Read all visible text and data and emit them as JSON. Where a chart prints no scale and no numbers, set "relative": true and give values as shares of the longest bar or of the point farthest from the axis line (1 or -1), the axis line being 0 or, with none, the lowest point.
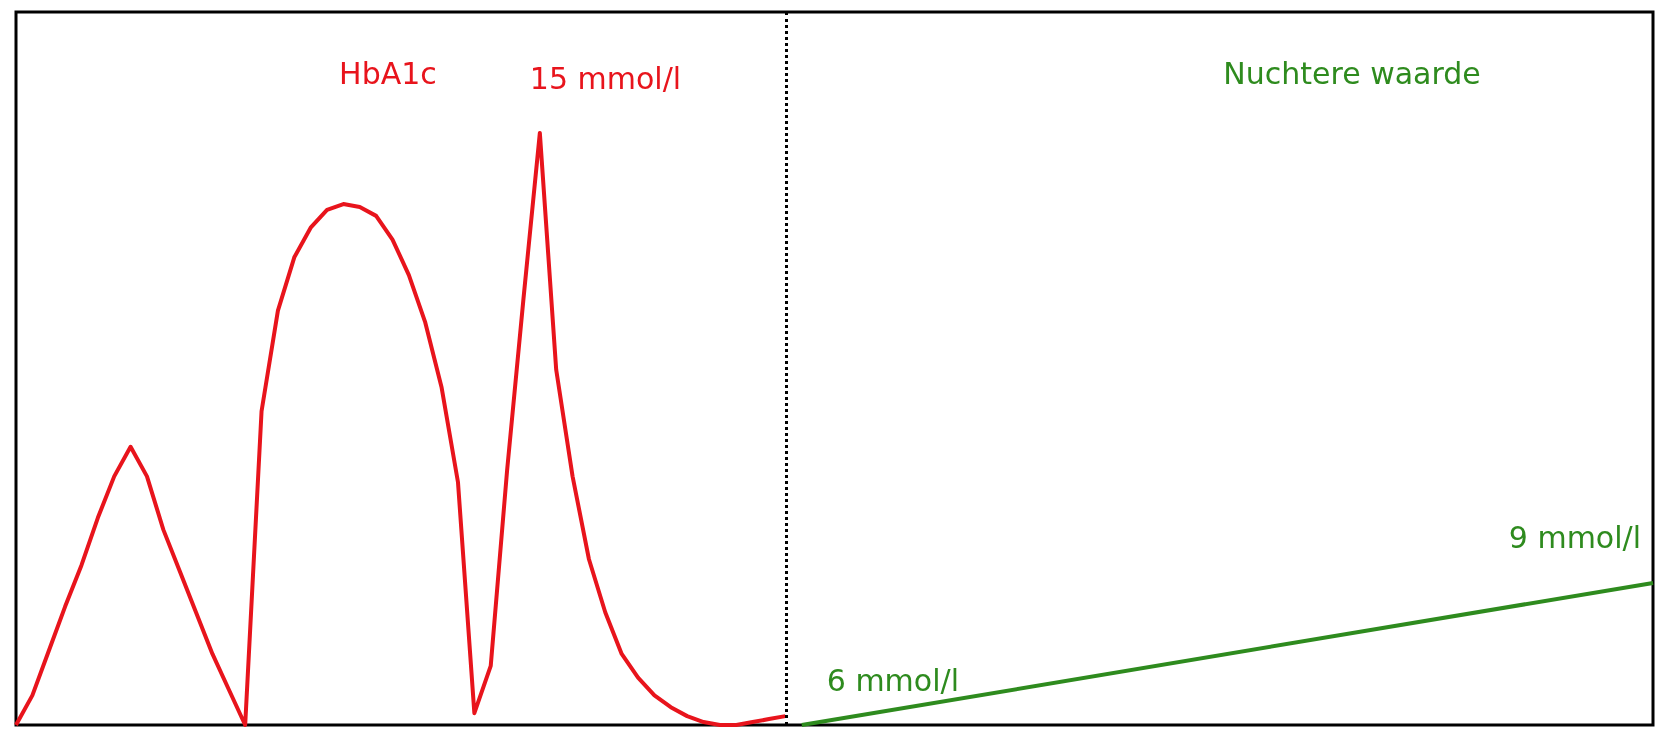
{
  "chart_data": {
    "type": "line",
    "relative": true,
    "categories": [
      null,
      null,
      null,
      null,
      null,
      null,
      null,
      null,
      null,
      null,
      null,
      null,
      null,
      null,
      null,
      null,
      null,
      null,
      null,
      null,
      null,
      null,
      null,
      null,
      null,
      null,
      null,
      null,
      null,
      null,
      null,
      null,
      null,
      null,
      null,
      null,
      null,
      null,
      null,
      null,
      null,
      null,
      null,
      null,
      null,
      null,
      null,
      null,
      null,
      null,
      null,
      null,
      null,
      null,
      null,
      null,
      null,
      null,
      null,
      null,
      null,
      null,
      null,
      null,
      null,
      null,
      null,
      null,
      null,
      null,
      null,
      null,
      null,
      null,
      null,
      null,
      null,
      null,
      null,
      null,
      null,
      null,
      null,
      null,
      null,
      null,
      null,
      null,
      null,
      null,
      null,
      null,
      null,
      null,
      null,
      null,
      null,
      null,
      null,
      null,
      null
    ],
    "series": [
      {
        "name": "HbA1c",
        "color": "#e8141c",
        "values": [
          0,
          0.05,
          0.125,
          0.2,
          0.27,
          0.35,
          0.42,
          0.47,
          0.42,
          0.33,
          0.26,
          0.19,
          0.12,
          0.06,
          0,
          0.53,
          0.7,
          0.79,
          0.84,
          0.87,
          0.88,
          0.875,
          0.86,
          0.82,
          0.76,
          0.68,
          0.57,
          0.41,
          0.02,
          0.1,
          0.43,
          0.72,
          1,
          0.6,
          0.42,
          0.28,
          0.19,
          0.12,
          0.08,
          0.05,
          0.03,
          0.015,
          0.005,
          0,
          0,
          0.005,
          0.01,
          0.015,
          null,
          null,
          null,
          null,
          null,
          null,
          null,
          null,
          null,
          null,
          null,
          null,
          null,
          null,
          null,
          null,
          null,
          null,
          null,
          null,
          null,
          null,
          null,
          null,
          null,
          null,
          null,
          null,
          null,
          null,
          null,
          null,
          null,
          null,
          null,
          null,
          null,
          null,
          null,
          null,
          null,
          null,
          null,
          null,
          null,
          null,
          null,
          null,
          null,
          null,
          null,
          null,
          null
        ]
      },
      {
        "name": "Nuchtere waarde",
        "color": "#2e8b1e",
        "values": [
          null,
          null,
          null,
          null,
          null,
          null,
          null,
          null,
          null,
          null,
          null,
          null,
          null,
          null,
          null,
          null,
          null,
          null,
          null,
          null,
          null,
          null,
          null,
          null,
          null,
          null,
          null,
          null,
          null,
          null,
          null,
          null,
          null,
          null,
          null,
          null,
          null,
          null,
          null,
          null,
          null,
          null,
          null,
          null,
          null,
          null,
          null,
          null,
          0,
          null,
          null,
          null,
          null,
          null,
          null,
          null,
          null,
          null,
          null,
          null,
          null,
          null,
          null,
          null,
          null,
          null,
          null,
          null,
          null,
          null,
          null,
          null,
          null,
          null,
          null,
          null,
          null,
          null,
          null,
          null,
          null,
          null,
          null,
          null,
          null,
          null,
          null,
          null,
          null,
          null,
          null,
          null,
          null,
          null,
          null,
          null,
          null,
          null,
          null,
          null,
          0.24
        ]
      }
    ],
    "annotations": [
      "15 mmol/l",
      "6 mmol/l",
      "9 mmol/l"
    ],
    "marker": "none",
    "grid": false,
    "legend": false
  }
}
